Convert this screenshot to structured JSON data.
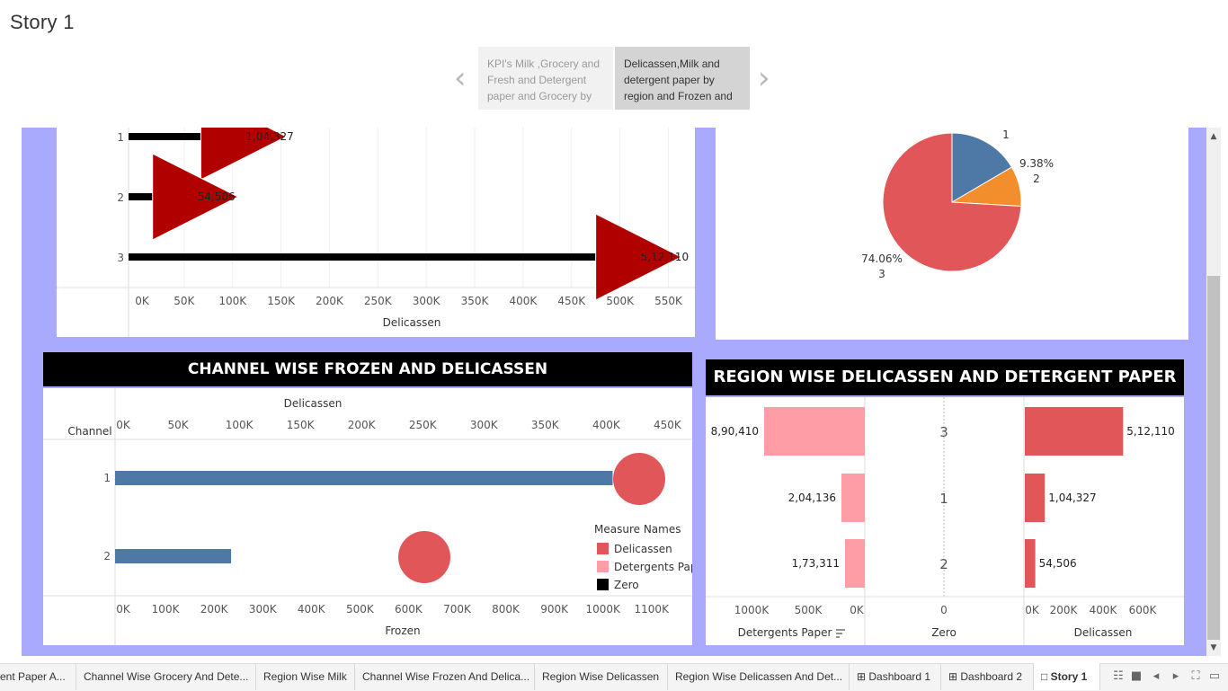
{
  "story": {
    "title": "Story 1",
    "points": [
      {
        "label": "KPI's Milk ,Grocery and Fresh and Detergent paper and Grocery by"
      },
      {
        "label": "Delicassen,Milk and detergent paper by region and Frozen and"
      }
    ]
  },
  "colors": {
    "canvas": "#a9a9fd",
    "red": "#e15759",
    "blue": "#4e79a7",
    "orange": "#f28e2b",
    "pink": "#ff9da7",
    "darkred": "#b00000"
  },
  "panels": {
    "top_left": {
      "chart_data": {
        "type": "bar",
        "categories": [
          "1",
          "2",
          "3"
        ],
        "values": [
          104327,
          54506,
          512110
        ],
        "value_labels": [
          "1,04,327",
          "54,506",
          "5,12,110"
        ],
        "xlabel": "Delicassen",
        "xticks": [
          "0K",
          "50K",
          "100K",
          "150K",
          "200K",
          "250K",
          "300K",
          "350K",
          "400K",
          "450K",
          "500K",
          "550K"
        ],
        "xlim": [
          0,
          570000
        ]
      }
    },
    "top_right": {
      "chart_data": {
        "type": "pie",
        "slices": [
          {
            "name": "1",
            "value": 16.56,
            "label": "1",
            "color": "#4e79a7"
          },
          {
            "name": "2",
            "value": 9.38,
            "label": "9.38%",
            "color": "#f28e2b"
          },
          {
            "name": "3",
            "value": 74.06,
            "label": "74.06%",
            "color": "#e15759"
          }
        ]
      }
    },
    "bottom_left": {
      "title": "CHANNEL WISE FROZEN AND DELICASSEN",
      "chart_data": {
        "type": "bar",
        "row_header": "Channel",
        "categories": [
          "1",
          "2"
        ],
        "frozen": [
          1020000,
          235000
        ],
        "delicassen": [
          420000,
          250000
        ],
        "top_axis_label": "Delicassen",
        "top_ticks": [
          "0K",
          "50K",
          "100K",
          "150K",
          "200K",
          "250K",
          "300K",
          "350K",
          "400K",
          "450K"
        ],
        "top_xlim": [
          0,
          460000
        ],
        "bottom_axis_label": "Frozen",
        "bottom_ticks": [
          "0K",
          "100K",
          "200K",
          "300K",
          "400K",
          "500K",
          "600K",
          "700K",
          "800K",
          "900K",
          "1000K",
          "1100K"
        ],
        "bottom_xlim": [
          0,
          1180000
        ]
      },
      "legend": {
        "title": "Measure Names",
        "items": [
          {
            "label": "Delicassen",
            "color": "#e15759"
          },
          {
            "label": "Detergents Paper",
            "color": "#ff9da7"
          },
          {
            "label": "Zero",
            "color": "#000000"
          }
        ]
      }
    },
    "bottom_right": {
      "title": "REGION WISE DELICASSEN AND DETERGENT PAPER",
      "chart_data": {
        "type": "bar",
        "categories": [
          "3",
          "1",
          "2"
        ],
        "detergents_paper": [
          890410,
          204136,
          173311
        ],
        "detergents_labels": [
          "8,90,410",
          "2,04,136",
          "1,73,311"
        ],
        "delicassen": [
          512110,
          104327,
          54506
        ],
        "delicassen_labels": [
          "5,12,110",
          "1,04,327",
          "54,506"
        ],
        "left_axis_label": "Detergents Paper",
        "left_ticks": [
          "1000K",
          "500K",
          "0K"
        ],
        "left_xlim": [
          0,
          1030000
        ],
        "mid_axis_label": "Zero",
        "mid_ticks": [
          "0"
        ],
        "right_axis_label": "Delicassen",
        "right_ticks": [
          "0K",
          "200K",
          "400K",
          "600K"
        ],
        "right_xlim": [
          0,
          780000
        ]
      }
    }
  },
  "tabs": [
    {
      "label": "ent Paper A..."
    },
    {
      "label": "Channel Wise Grocery And Dete..."
    },
    {
      "label": "Region Wise Milk"
    },
    {
      "label": "Channel Wise Frozen And Delica..."
    },
    {
      "label": "Region Wise Delicassen"
    },
    {
      "label": "Region Wise Delicassen And Det..."
    },
    {
      "label": "Dashboard 1"
    },
    {
      "label": "Dashboard 2"
    },
    {
      "label": "Story 1"
    }
  ],
  "icons": [
    "grid-view-icon",
    "single-view-icon",
    "tab-prev-icon",
    "tab-next-icon",
    "fullscreen-icon",
    "presentation-icon"
  ]
}
